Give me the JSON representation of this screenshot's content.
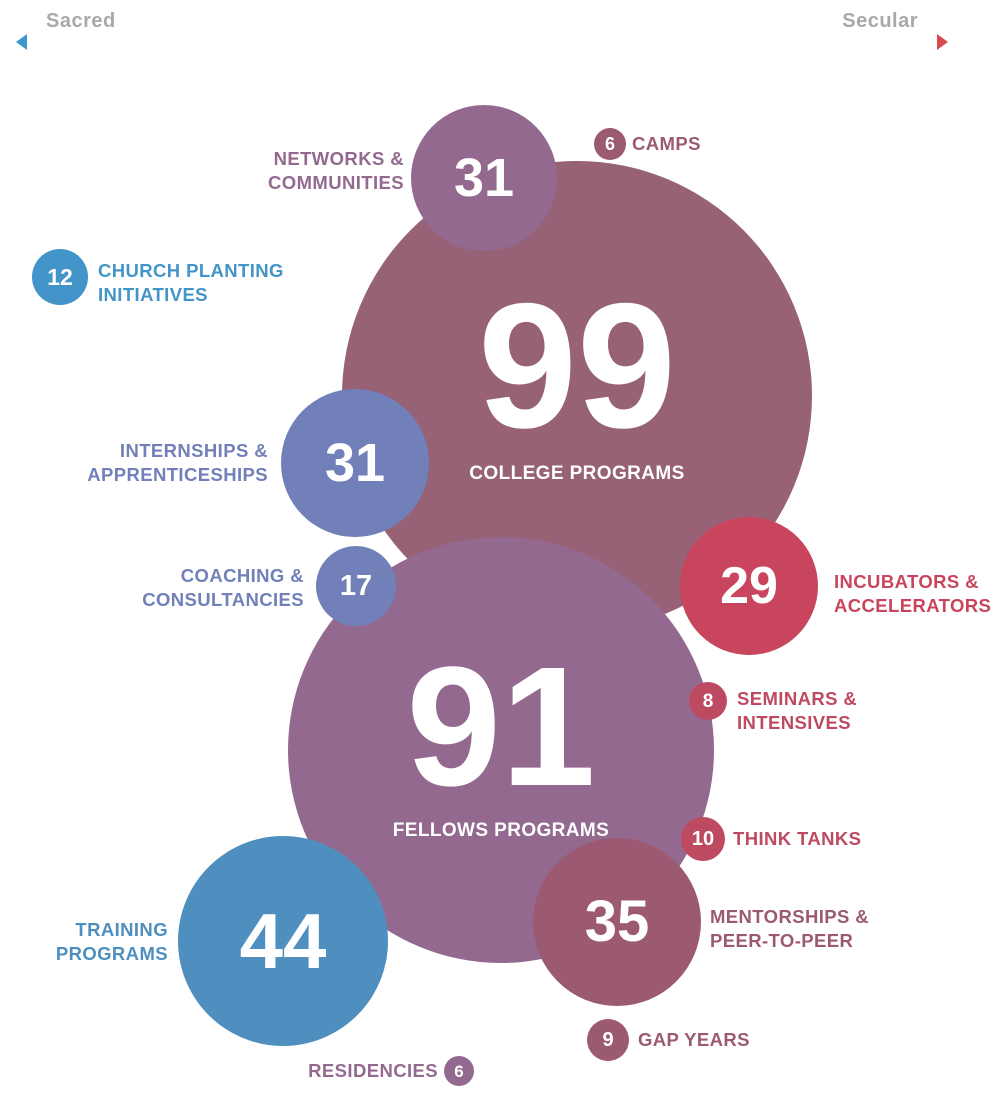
{
  "scale": {
    "left_label": "Sacred",
    "right_label": "Secular",
    "left_color": "#3d97cf",
    "right_color": "#d94a4f"
  },
  "colors": {
    "blue": "#4294c9",
    "steel_blue": "#5a8dbd",
    "periwinkle": "#7180b8",
    "mauve_light": "#94698f",
    "mauve": "#976176",
    "plum": "#9c5a72",
    "rose_red": "#c9455d",
    "rose": "#be4a62"
  },
  "items": {
    "college": {
      "count": "99",
      "label": "COLLEGE PROGRAMS"
    },
    "fellows": {
      "count": "91",
      "label": "FELLOWS PROGRAMS"
    },
    "training": {
      "count": "44",
      "label_1": "TRAINING",
      "label_2": "PROGRAMS"
    },
    "mentorships": {
      "count": "35",
      "label_1": "MENTORSHIPS &",
      "label_2": "PEER-TO-PEER"
    },
    "networks": {
      "count": "31",
      "label_1": "NETWORKS &",
      "label_2": "COMMUNITIES"
    },
    "internships": {
      "count": "31",
      "label_1": "INTERNSHIPS &",
      "label_2": "APPRENTICESHIPS"
    },
    "incubators": {
      "count": "29",
      "label_1": "INCUBATORS &",
      "label_2": "ACCELERATORS"
    },
    "coaching": {
      "count": "17",
      "label_1": "COACHING &",
      "label_2": "CONSULTANCIES"
    },
    "church": {
      "count": "12",
      "label_1": "CHURCH PLANTING",
      "label_2": "INITIATIVES"
    },
    "thinktanks": {
      "count": "10",
      "label": "THINK TANKS"
    },
    "gapyears": {
      "count": "9",
      "label": "GAP YEARS"
    },
    "seminars": {
      "count": "8",
      "label_1": "SEMINARS &",
      "label_2": "INTENSIVES"
    },
    "camps": {
      "count": "6",
      "label": "CAMPS"
    },
    "residencies": {
      "count": "6",
      "label": "RESIDENCIES"
    }
  }
}
